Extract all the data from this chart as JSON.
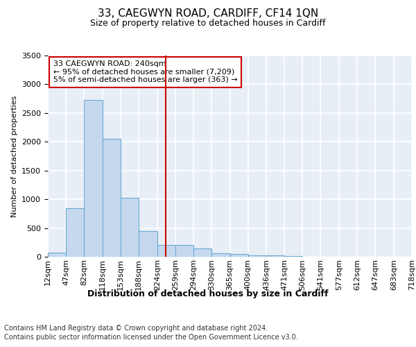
{
  "title1": "33, CAEGWYN ROAD, CARDIFF, CF14 1QN",
  "title2": "Size of property relative to detached houses in Cardiff",
  "xlabel": "Distribution of detached houses by size in Cardiff",
  "ylabel": "Number of detached properties",
  "footer1": "Contains HM Land Registry data © Crown copyright and database right 2024.",
  "footer2": "Contains public sector information licensed under the Open Government Licence v3.0.",
  "bin_edges": [
    12,
    47,
    82,
    118,
    153,
    188,
    224,
    259,
    294,
    330,
    365,
    400,
    436,
    471,
    506,
    541,
    577,
    612,
    647,
    683,
    718
  ],
  "bar_heights": [
    75,
    850,
    2725,
    2050,
    1025,
    450,
    200,
    200,
    140,
    60,
    50,
    30,
    20,
    12,
    5,
    4,
    2,
    1,
    1,
    1
  ],
  "bar_color": "#c5d8ee",
  "bar_edge_color": "#6aaad4",
  "bg_color": "#e8eef6",
  "grid_color": "#ffffff",
  "vline_x": 240,
  "vline_color": "#cc0000",
  "annotation_line1": "33 CAEGWYN ROAD: 240sqm",
  "annotation_line2": "← 95% of detached houses are smaller (7,209)",
  "annotation_line3": "5% of semi-detached houses are larger (363) →",
  "annotation_box_color": "#ffffff",
  "annotation_box_edge": "#cc0000",
  "ylim": [
    0,
    3500
  ],
  "yticks": [
    0,
    500,
    1000,
    1500,
    2000,
    2500,
    3000,
    3500
  ],
  "title1_fontsize": 11,
  "title2_fontsize": 9,
  "xlabel_fontsize": 9,
  "ylabel_fontsize": 8,
  "xtick_fontsize": 8,
  "ytick_fontsize": 8,
  "footer_fontsize": 7
}
